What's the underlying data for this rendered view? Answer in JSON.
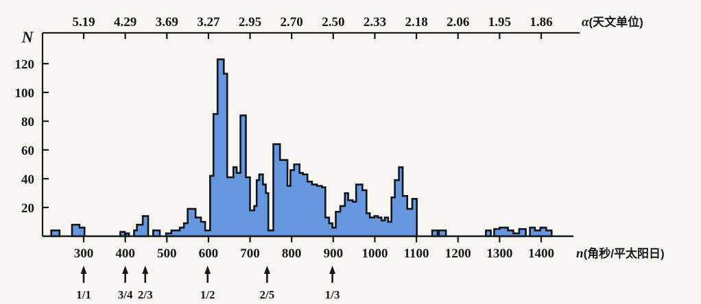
{
  "chart_data": {
    "type": "bar",
    "description_visible_text_only": true,
    "y_axis": {
      "label": "N",
      "ticks": [
        20,
        40,
        60,
        80,
        100,
        120
      ],
      "range": [
        0,
        140
      ]
    },
    "x_axis_bottom": {
      "unit_symbol": "n",
      "unit_text": "(角秒/平太阳日)",
      "ticks": [
        300,
        400,
        500,
        600,
        700,
        800,
        900,
        1000,
        1100,
        1200,
        1300,
        1400
      ]
    },
    "x_axis_top": {
      "unit_symbol": "α",
      "unit_text": "(天文单位)",
      "ticks": [
        {
          "n": 300,
          "label": "5.19"
        },
        {
          "n": 400,
          "label": "4.29"
        },
        {
          "n": 500,
          "label": "3.69"
        },
        {
          "n": 600,
          "label": "3.27"
        },
        {
          "n": 700,
          "label": "2.95"
        },
        {
          "n": 800,
          "label": "2.70"
        },
        {
          "n": 900,
          "label": "2.50"
        },
        {
          "n": 1000,
          "label": "2.33"
        },
        {
          "n": 1100,
          "label": "2.18"
        },
        {
          "n": 1200,
          "label": "2.06"
        },
        {
          "n": 1300,
          "label": "1.95"
        },
        {
          "n": 1400,
          "label": "1.86"
        }
      ]
    },
    "resonance_markers": [
      {
        "label": "1/1",
        "n": 300
      },
      {
        "label": "3/4",
        "n": 400
      },
      {
        "label": "2/3",
        "n": 448
      },
      {
        "label": "1/2",
        "n": 598
      },
      {
        "label": "2/5",
        "n": 741
      },
      {
        "label": "1/3",
        "n": 898
      }
    ],
    "bars_format": "[n_start, n_end, N]",
    "bars": [
      [
        222,
        242,
        4
      ],
      [
        272,
        290,
        8
      ],
      [
        290,
        302,
        6
      ],
      [
        388,
        399,
        3
      ],
      [
        401,
        409,
        2
      ],
      [
        421,
        428,
        4
      ],
      [
        428,
        442,
        8
      ],
      [
        442,
        455,
        14
      ],
      [
        467,
        483,
        4
      ],
      [
        498,
        511,
        2
      ],
      [
        511,
        531,
        4
      ],
      [
        531,
        541,
        6
      ],
      [
        541,
        550,
        9
      ],
      [
        550,
        569,
        19
      ],
      [
        569,
        582,
        13
      ],
      [
        582,
        592,
        10
      ],
      [
        592,
        604,
        4
      ],
      [
        604,
        612,
        42
      ],
      [
        612,
        622,
        85
      ],
      [
        622,
        637,
        123
      ],
      [
        637,
        645,
        113
      ],
      [
        645,
        660,
        41
      ],
      [
        660,
        668,
        48
      ],
      [
        668,
        677,
        44
      ],
      [
        677,
        690,
        84
      ],
      [
        690,
        700,
        41
      ],
      [
        700,
        710,
        18
      ],
      [
        710,
        716,
        21
      ],
      [
        716,
        722,
        39
      ],
      [
        722,
        731,
        43
      ],
      [
        731,
        738,
        36
      ],
      [
        738,
        744,
        30
      ],
      [
        744,
        756,
        4
      ],
      [
        756,
        772,
        64
      ],
      [
        772,
        790,
        53
      ],
      [
        790,
        797,
        35
      ],
      [
        797,
        806,
        46
      ],
      [
        806,
        819,
        50
      ],
      [
        819,
        827,
        44
      ],
      [
        827,
        838,
        43
      ],
      [
        838,
        849,
        38
      ],
      [
        849,
        861,
        36
      ],
      [
        861,
        873,
        35
      ],
      [
        873,
        881,
        34
      ],
      [
        881,
        890,
        13
      ],
      [
        890,
        898,
        9
      ],
      [
        898,
        906,
        6
      ],
      [
        906,
        917,
        17
      ],
      [
        917,
        928,
        21
      ],
      [
        928,
        936,
        30
      ],
      [
        936,
        947,
        25
      ],
      [
        947,
        955,
        24
      ],
      [
        955,
        970,
        36
      ],
      [
        970,
        980,
        32
      ],
      [
        980,
        988,
        16
      ],
      [
        988,
        999,
        13
      ],
      [
        999,
        1007,
        14
      ],
      [
        1007,
        1016,
        13
      ],
      [
        1016,
        1024,
        11
      ],
      [
        1024,
        1032,
        13
      ],
      [
        1032,
        1040,
        10
      ],
      [
        1040,
        1048,
        27
      ],
      [
        1048,
        1058,
        39
      ],
      [
        1058,
        1067,
        48
      ],
      [
        1067,
        1078,
        28
      ],
      [
        1078,
        1090,
        19
      ],
      [
        1090,
        1101,
        26
      ],
      [
        1138,
        1151,
        4
      ],
      [
        1154,
        1171,
        4
      ],
      [
        1267,
        1279,
        4
      ],
      [
        1287,
        1300,
        5
      ],
      [
        1300,
        1320,
        6
      ],
      [
        1320,
        1333,
        4
      ],
      [
        1333,
        1347,
        2
      ],
      [
        1347,
        1363,
        5
      ],
      [
        1373,
        1385,
        6
      ],
      [
        1385,
        1398,
        4
      ],
      [
        1398,
        1412,
        6
      ],
      [
        1412,
        1425,
        4
      ]
    ],
    "colors": {
      "bar_fill": "#6696dd",
      "bar_stroke": "#10141c",
      "axis_ink": "#16181d",
      "background": "#f6f5f0"
    },
    "legend": "none",
    "grid": "off"
  }
}
